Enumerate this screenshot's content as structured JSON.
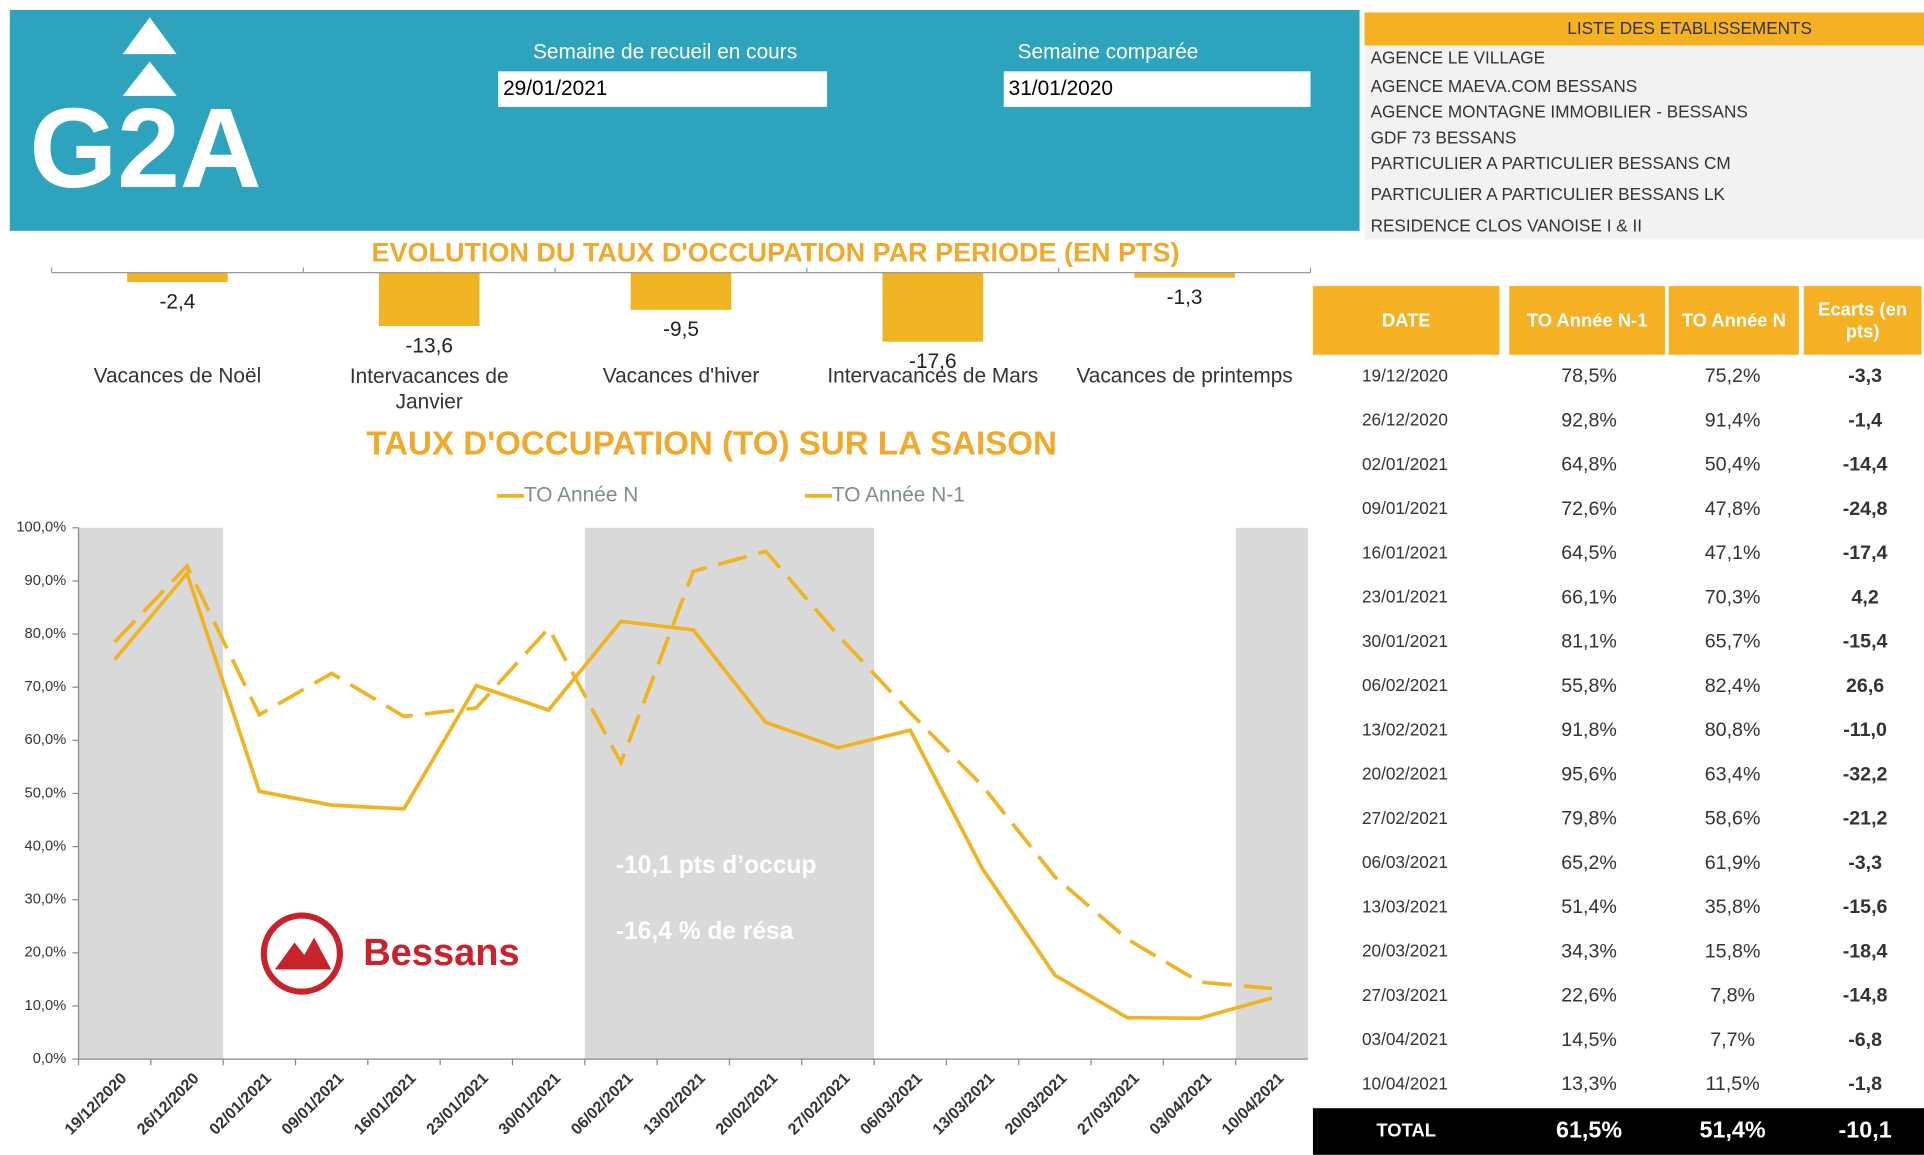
{
  "logo": "G2A",
  "header": {
    "week_label": "Semaine de recueil en cours",
    "week_value": "29/01/2021",
    "compare_label": "Semaine comparée",
    "compare_value": "31/01/2020"
  },
  "establishments": {
    "title": "LISTE DES ETABLISSEMENTS",
    "items": [
      "AGENCE LE VILLAGE",
      "AGENCE MAEVA.COM BESSANS",
      "AGENCE MONTAGNE IMMOBILIER - BESSANS",
      "GDF 73 BESSANS",
      "PARTICULIER A PARTICULIER BESSANS CM",
      "PARTICULIER A PARTICULIER BESSANS LK",
      "RESIDENCE CLOS VANOISE I & II"
    ]
  },
  "brand": "Bessans",
  "chart_data": [
    {
      "type": "bar",
      "title": "EVOLUTION DU TAUX D'OCCUPATION PAR PERIODE (EN PTS)",
      "categories": [
        "Vacances de Noël",
        "Intervacances de Janvier",
        "Vacances d'hiver",
        "Intervacances de Mars",
        "Vacances de printemps"
      ],
      "values": [
        -2.4,
        -13.6,
        -9.5,
        -17.6,
        -1.3
      ],
      "value_labels": [
        "-2,4",
        "-13,6",
        "-9,5",
        "-17,6",
        "-1,3"
      ],
      "color": "#f0b323",
      "ylim": [
        -20,
        0
      ]
    },
    {
      "type": "line",
      "title": "TAUX D'OCCUPATION (TO) SUR LA SAISON",
      "categories": [
        "19/12/2020",
        "26/12/2020",
        "02/01/2021",
        "09/01/2021",
        "16/01/2021",
        "23/01/2021",
        "30/01/2021",
        "06/02/2021",
        "13/02/2021",
        "20/02/2021",
        "27/02/2021",
        "06/03/2021",
        "13/03/2021",
        "20/03/2021",
        "27/03/2021",
        "03/04/2021",
        "10/04/2021"
      ],
      "series": [
        {
          "name": "TO Année N",
          "color": "#f0b323",
          "dashed": false,
          "values": [
            75.2,
            91.4,
            50.4,
            47.8,
            47.1,
            70.3,
            65.7,
            82.4,
            80.8,
            63.4,
            58.6,
            61.9,
            35.8,
            15.8,
            7.8,
            7.7,
            11.5
          ]
        },
        {
          "name": "TO Année N-1",
          "color": "#f0b323",
          "dashed": true,
          "values": [
            78.5,
            92.8,
            64.8,
            72.6,
            64.5,
            66.1,
            81.1,
            55.8,
            91.8,
            95.6,
            79.8,
            65.2,
            51.4,
            34.3,
            22.6,
            14.5,
            13.3
          ]
        }
      ],
      "ylim": [
        0,
        100
      ],
      "yticks": [
        {
          "value": 0,
          "label": "0,0%"
        },
        {
          "value": 10,
          "label": "10,0%"
        },
        {
          "value": 20,
          "label": "20,0%"
        },
        {
          "value": 30,
          "label": "30,0%"
        },
        {
          "value": 40,
          "label": "40,0%"
        },
        {
          "value": 50,
          "label": "50,0%"
        },
        {
          "value": 60,
          "label": "60,0%"
        },
        {
          "value": 70,
          "label": "70,0%"
        },
        {
          "value": 80,
          "label": "80,0%"
        },
        {
          "value": 90,
          "label": "90,0%"
        },
        {
          "value": 100,
          "label": "100,0%"
        }
      ],
      "grid": false,
      "legend": "top",
      "annotations": [
        "-10,1 pts d’occup",
        "-16,4 % de résa"
      ]
    }
  ],
  "table": {
    "columns": [
      "DATE",
      "TO Année N-1",
      "TO Année N",
      "Ecarts (en pts)"
    ],
    "rows": [
      [
        "19/12/2020",
        "78,5%",
        "75,2%",
        "-3,3"
      ],
      [
        "26/12/2020",
        "92,8%",
        "91,4%",
        "-1,4"
      ],
      [
        "02/01/2021",
        "64,8%",
        "50,4%",
        "-14,4"
      ],
      [
        "09/01/2021",
        "72,6%",
        "47,8%",
        "-24,8"
      ],
      [
        "16/01/2021",
        "64,5%",
        "47,1%",
        "-17,4"
      ],
      [
        "23/01/2021",
        "66,1%",
        "70,3%",
        "4,2"
      ],
      [
        "30/01/2021",
        "81,1%",
        "65,7%",
        "-15,4"
      ],
      [
        "06/02/2021",
        "55,8%",
        "82,4%",
        "26,6"
      ],
      [
        "13/02/2021",
        "91,8%",
        "80,8%",
        "-11,0"
      ],
      [
        "20/02/2021",
        "95,6%",
        "63,4%",
        "-32,2"
      ],
      [
        "27/02/2021",
        "79,8%",
        "58,6%",
        "-21,2"
      ],
      [
        "06/03/2021",
        "65,2%",
        "61,9%",
        "-3,3"
      ],
      [
        "13/03/2021",
        "51,4%",
        "35,8%",
        "-15,6"
      ],
      [
        "20/03/2021",
        "34,3%",
        "15,8%",
        "-18,4"
      ],
      [
        "27/03/2021",
        "22,6%",
        "7,8%",
        "-14,8"
      ],
      [
        "03/04/2021",
        "14,5%",
        "7,7%",
        "-6,8"
      ],
      [
        "10/04/2021",
        "13,3%",
        "11,5%",
        "-1,8"
      ]
    ],
    "total": [
      "TOTAL",
      "61,5%",
      "51,4%",
      "-10,1"
    ]
  }
}
